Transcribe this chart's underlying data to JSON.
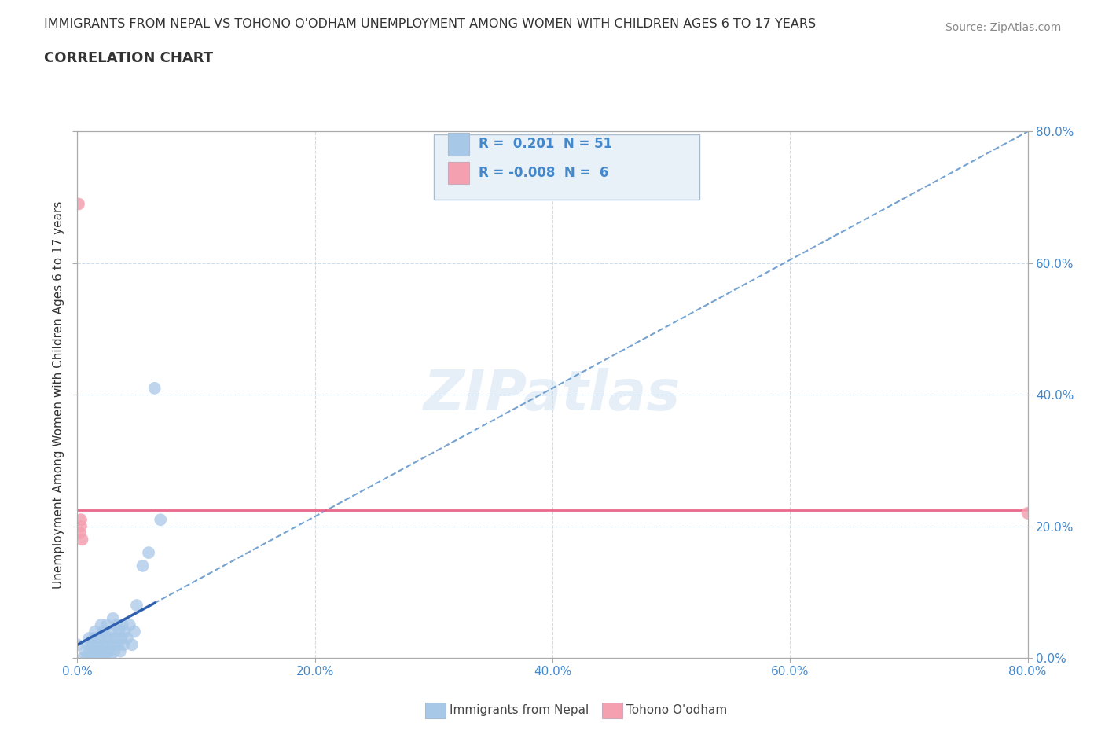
{
  "title": "IMMIGRANTS FROM NEPAL VS TOHONO O'ODHAM UNEMPLOYMENT AMONG WOMEN WITH CHILDREN AGES 6 TO 17 YEARS",
  "subtitle": "CORRELATION CHART",
  "source": "Source: ZipAtlas.com",
  "ylabel": "Unemployment Among Women with Children Ages 6 to 17 years",
  "xlim": [
    0,
    0.8
  ],
  "ylim": [
    0,
    0.8
  ],
  "xticks": [
    0.0,
    0.2,
    0.4,
    0.6,
    0.8
  ],
  "yticks": [
    0.0,
    0.2,
    0.4,
    0.6,
    0.8
  ],
  "nepal_R": 0.201,
  "nepal_N": 51,
  "tohono_R": -0.008,
  "tohono_N": 6,
  "nepal_color": "#a8c8e8",
  "tohono_color": "#f4a0b0",
  "nepal_trend_color": "#6699cc",
  "tohono_trend_color": "#e85880",
  "nepal_solid_color": "#2255aa",
  "background_color": "#ffffff",
  "grid_color": "#ccddee",
  "tick_label_color": "#4488cc",
  "nepal_x": [
    0.0,
    0.005,
    0.007,
    0.008,
    0.009,
    0.01,
    0.01,
    0.011,
    0.012,
    0.013,
    0.014,
    0.015,
    0.015,
    0.016,
    0.017,
    0.018,
    0.019,
    0.02,
    0.02,
    0.021,
    0.022,
    0.022,
    0.023,
    0.024,
    0.025,
    0.025,
    0.026,
    0.027,
    0.028,
    0.029,
    0.03,
    0.03,
    0.031,
    0.032,
    0.033,
    0.034,
    0.035,
    0.036,
    0.037,
    0.038,
    0.039,
    0.04,
    0.042,
    0.044,
    0.046,
    0.048,
    0.05,
    0.055,
    0.06,
    0.065,
    0.07
  ],
  "nepal_y": [
    0.02,
    0.0,
    0.01,
    0.0,
    0.02,
    0.01,
    0.03,
    0.0,
    0.02,
    0.01,
    0.03,
    0.0,
    0.04,
    0.01,
    0.02,
    0.0,
    0.03,
    0.01,
    0.05,
    0.02,
    0.01,
    0.04,
    0.0,
    0.03,
    0.02,
    0.05,
    0.01,
    0.03,
    0.0,
    0.04,
    0.02,
    0.06,
    0.01,
    0.03,
    0.05,
    0.02,
    0.04,
    0.01,
    0.03,
    0.05,
    0.02,
    0.04,
    0.03,
    0.05,
    0.02,
    0.04,
    0.08,
    0.14,
    0.16,
    0.41,
    0.21
  ],
  "tohono_x": [
    0.001,
    0.002,
    0.003,
    0.003,
    0.004,
    0.8
  ],
  "tohono_y": [
    0.69,
    0.19,
    0.2,
    0.21,
    0.18,
    0.22
  ],
  "watermark": "ZIPatlas",
  "legend_box_facecolor": "#e8f0f8",
  "legend_box_edgecolor": "#aabbcc"
}
